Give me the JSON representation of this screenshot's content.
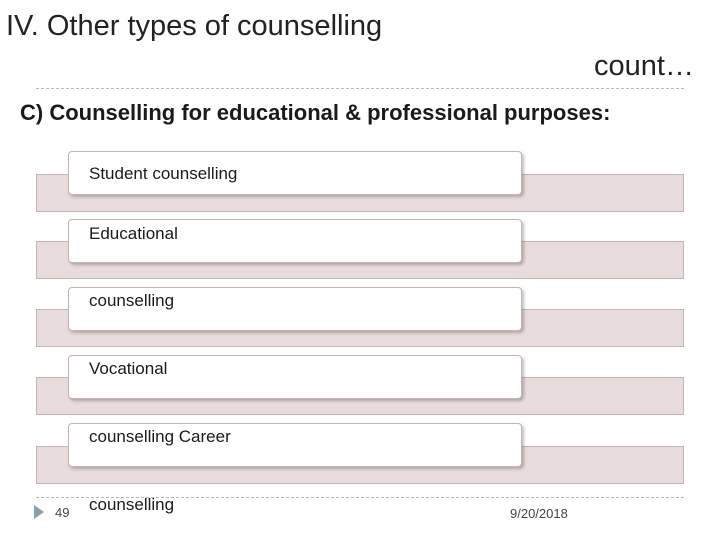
{
  "title": {
    "line1": "IV. Other types of counselling",
    "line2": "count…"
  },
  "subtitle": "C) Counselling for educational & professional purposes:",
  "items": [
    "Student counselling",
    "Educational",
    "counselling",
    "Vocational",
    "counselling  Career",
    "counselling"
  ],
  "footer": {
    "page_number": "49",
    "date": "9/20/2018"
  },
  "colors": {
    "band": "#e9dcdc",
    "card": "#ffffff",
    "marker": "#8aa0ac"
  }
}
